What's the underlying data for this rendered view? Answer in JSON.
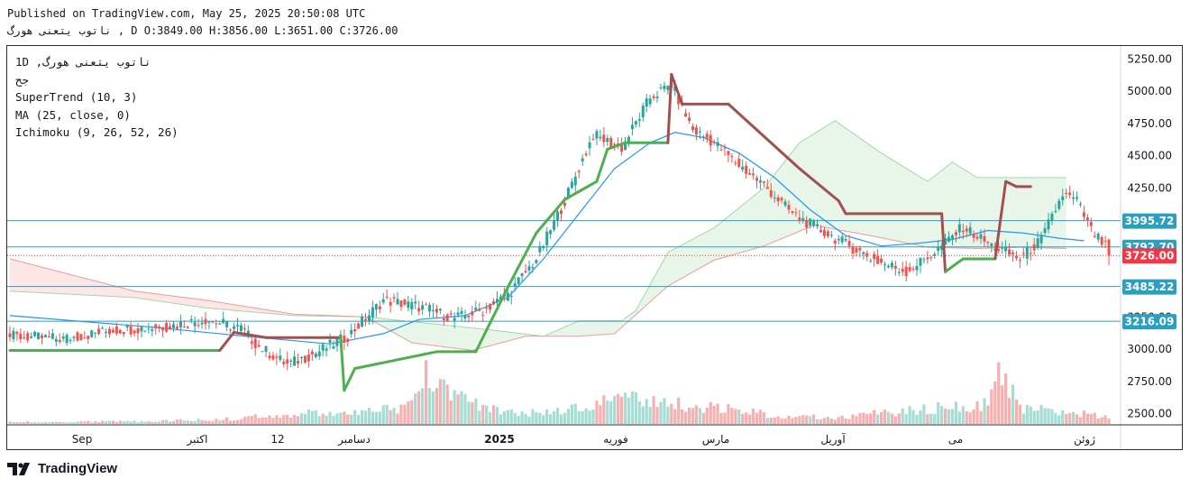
{
  "header": {
    "published_line": "Published on TradingView.com, May 25, 2025 20:50:08 UTC",
    "symbol_line": "ناتوب یتعنی هورگ , D O:3849.00 H:3856.00 L:3651.00 C:3726.00"
  },
  "legend": {
    "symbol": "ناتوب یتعنی هورگ, 1D",
    "exchange": "جح",
    "supertrend": "SuperTrend (10, 3)",
    "ma": "MA (25, close, 0)",
    "ichimoku": "Ichimoku (9, 26, 52, 26)"
  },
  "brand": {
    "name": "TradingView"
  },
  "colors": {
    "up": "#26a69a",
    "down": "#ef5350",
    "supertrend_up": "#4caf50",
    "supertrend_down": "#a1504f",
    "ma": "#2196f3",
    "cloud_bull_fill": "#e8f5e9",
    "cloud_bear_fill": "#fde6e6",
    "cloud_bull_line": "#a5d6a7",
    "cloud_bear_line": "#ef9a9a",
    "hline": "#2a9fc0",
    "last_price": "#f23645"
  },
  "chart_data": {
    "type": "candlestick",
    "x_tick_labels": [
      "Sep",
      "اکتبر",
      "12",
      "دسامبر",
      "2025",
      "فوریه",
      "مارس",
      "آوریل",
      "می",
      "ژوئن"
    ],
    "y_ticks": [
      2500,
      2750,
      3000,
      3250,
      3500,
      3750,
      4000,
      4250,
      4500,
      4750,
      5000,
      5250
    ],
    "y_tick_labels": [
      "2500.00",
      "2750.00",
      "3000.00",
      "3250.00",
      "3500.00",
      "3750.00",
      "4000.00",
      "4250.00",
      "4500.00",
      "4750.00",
      "5000.00",
      "5250.00"
    ],
    "ylim": [
      2420,
      5350
    ],
    "horizontal_levels": [
      {
        "value": 3995.72,
        "label": "3995.72"
      },
      {
        "value": 3792.7,
        "label": "3792.70"
      },
      {
        "value": 3485.22,
        "label": "3485.22"
      },
      {
        "value": 3216.09,
        "label": "3216.09"
      }
    ],
    "last_price": {
      "value": 3726.0,
      "label": "3726.00"
    },
    "last_ohlc": {
      "open": 3849,
      "high": 3856,
      "low": 3651,
      "close": 3726
    },
    "close_path": [
      [
        0,
        3100
      ],
      [
        15,
        3080
      ],
      [
        30,
        3150
      ],
      [
        45,
        3180
      ],
      [
        55,
        3230
      ],
      [
        65,
        3160
      ],
      [
        70,
        3020
      ],
      [
        78,
        2880
      ],
      [
        86,
        2970
      ],
      [
        95,
        3100
      ],
      [
        105,
        3380
      ],
      [
        115,
        3330
      ],
      [
        125,
        3240
      ],
      [
        133,
        3300
      ],
      [
        140,
        3420
      ],
      [
        148,
        3700
      ],
      [
        156,
        4150
      ],
      [
        164,
        4660
      ],
      [
        172,
        4560
      ],
      [
        180,
        4950
      ],
      [
        186,
        5050
      ],
      [
        192,
        4700
      ],
      [
        198,
        4600
      ],
      [
        204,
        4450
      ],
      [
        212,
        4270
      ],
      [
        220,
        4050
      ],
      [
        228,
        3920
      ],
      [
        236,
        3800
      ],
      [
        244,
        3680
      ],
      [
        252,
        3600
      ],
      [
        260,
        3750
      ],
      [
        268,
        3950
      ],
      [
        276,
        3800
      ],
      [
        284,
        3700
      ],
      [
        290,
        3850
      ],
      [
        296,
        4200
      ],
      [
        300,
        4150
      ],
      [
        304,
        3920
      ],
      [
        310,
        3726
      ]
    ],
    "volume_path": [
      [
        0,
        2
      ],
      [
        40,
        3
      ],
      [
        60,
        5
      ],
      [
        80,
        12
      ],
      [
        95,
        10
      ],
      [
        110,
        18
      ],
      [
        115,
        35
      ],
      [
        118,
        60
      ],
      [
        122,
        50
      ],
      [
        130,
        22
      ],
      [
        140,
        14
      ],
      [
        150,
        12
      ],
      [
        160,
        18
      ],
      [
        175,
        28
      ],
      [
        190,
        22
      ],
      [
        205,
        14
      ],
      [
        215,
        10
      ],
      [
        225,
        8
      ],
      [
        232,
        7
      ],
      [
        240,
        10
      ],
      [
        250,
        14
      ],
      [
        260,
        18
      ],
      [
        270,
        20
      ],
      [
        275,
        25
      ],
      [
        278,
        58
      ],
      [
        284,
        18
      ],
      [
        296,
        14
      ],
      [
        304,
        10
      ],
      [
        310,
        8
      ]
    ],
    "ma_25": [
      [
        0,
        3260
      ],
      [
        40,
        3170
      ],
      [
        70,
        3090
      ],
      [
        90,
        3040
      ],
      [
        105,
        3120
      ],
      [
        115,
        3230
      ],
      [
        128,
        3260
      ],
      [
        140,
        3400
      ],
      [
        150,
        3700
      ],
      [
        160,
        4050
      ],
      [
        170,
        4400
      ],
      [
        180,
        4600
      ],
      [
        187,
        4680
      ],
      [
        195,
        4640
      ],
      [
        205,
        4520
      ],
      [
        215,
        4330
      ],
      [
        225,
        4080
      ],
      [
        235,
        3880
      ],
      [
        245,
        3800
      ],
      [
        255,
        3820
      ],
      [
        265,
        3850
      ],
      [
        275,
        3920
      ],
      [
        285,
        3900
      ],
      [
        295,
        3860
      ],
      [
        302,
        3840
      ]
    ],
    "supertrend": [
      [
        0,
        2990
      ],
      [
        59,
        2990
      ],
      [
        63,
        3130
      ],
      [
        72,
        3090
      ],
      [
        93,
        3090
      ],
      [
        94,
        2680
      ],
      [
        97,
        2850
      ],
      [
        120,
        2980
      ],
      [
        131,
        2980
      ],
      [
        140,
        3480
      ],
      [
        148,
        3900
      ],
      [
        156,
        4160
      ],
      [
        165,
        4300
      ],
      [
        168,
        4550
      ],
      [
        173,
        4600
      ],
      [
        185,
        4600
      ],
      [
        186,
        5130
      ],
      [
        189,
        4900
      ],
      [
        202,
        4900
      ],
      [
        210,
        4700
      ],
      [
        222,
        4400
      ],
      [
        233,
        4150
      ],
      [
        235,
        4050
      ],
      [
        262,
        4050
      ],
      [
        263,
        3600
      ],
      [
        268,
        3700
      ],
      [
        277,
        3700
      ],
      [
        280,
        4300
      ],
      [
        283,
        4260
      ],
      [
        287,
        4260
      ]
    ],
    "cloud_span_a": [
      [
        0,
        3450
      ],
      [
        35,
        3400
      ],
      [
        55,
        3320
      ],
      [
        80,
        3260
      ],
      [
        100,
        3250
      ],
      [
        114,
        3210
      ],
      [
        135,
        3150
      ],
      [
        150,
        3100
      ],
      [
        160,
        3220
      ],
      [
        172,
        3220
      ],
      [
        176,
        3300
      ],
      [
        185,
        3750
      ],
      [
        198,
        3940
      ],
      [
        212,
        4250
      ],
      [
        222,
        4600
      ],
      [
        232,
        4770
      ],
      [
        245,
        4520
      ],
      [
        258,
        4300
      ],
      [
        265,
        4450
      ],
      [
        272,
        4330
      ],
      [
        297,
        4330
      ]
    ],
    "cloud_span_b": [
      [
        0,
        3700
      ],
      [
        35,
        3450
      ],
      [
        55,
        3380
      ],
      [
        80,
        3270
      ],
      [
        100,
        3250
      ],
      [
        113,
        3050
      ],
      [
        130,
        2990
      ],
      [
        145,
        3100
      ],
      [
        160,
        3100
      ],
      [
        170,
        3120
      ],
      [
        185,
        3490
      ],
      [
        198,
        3690
      ],
      [
        212,
        3800
      ],
      [
        226,
        3960
      ],
      [
        242,
        3880
      ],
      [
        258,
        3790
      ],
      [
        272,
        3780
      ],
      [
        285,
        3790
      ],
      [
        297,
        3780
      ]
    ]
  }
}
